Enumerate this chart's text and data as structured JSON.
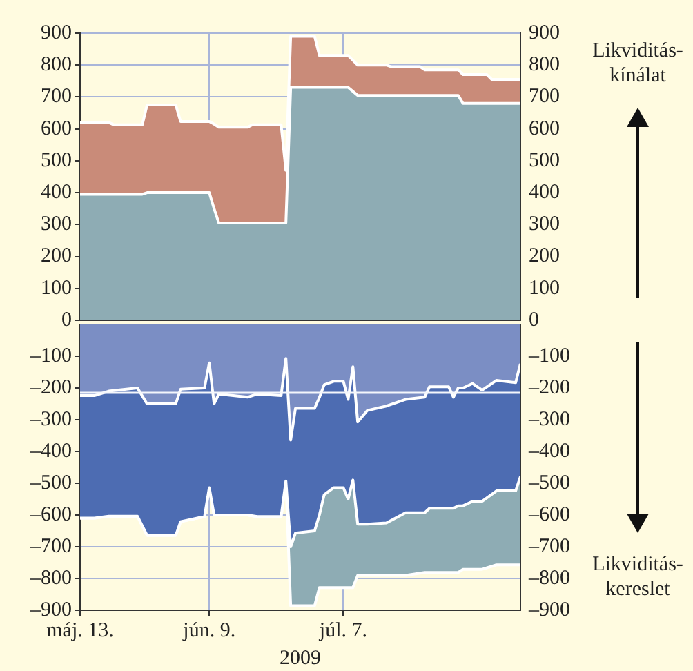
{
  "chart_data": [
    {
      "type": "area",
      "stacked": true,
      "tick_labels": "y",
      "annotations": [
        "Likviditás-kínálat"
      ],
      "xlim": [
        "2009-05-13",
        "2009-08-13"
      ],
      "xticks": [
        {
          "value": "2009-05-13",
          "label": null
        },
        {
          "value": "2009-06-09",
          "label": null
        },
        {
          "value": "2009-07-07",
          "label": null
        }
      ],
      "ylim": [
        0,
        900
      ],
      "yticks": [
        0,
        100,
        200,
        300,
        400,
        500,
        600,
        700,
        800,
        900
      ],
      "y2lim": [
        0,
        900
      ],
      "y2ticks": [
        0,
        100,
        200,
        300,
        400,
        500,
        600,
        700,
        800,
        900
      ],
      "grid": true,
      "series": [
        {
          "color": "#8eacb4",
          "x": [
            "2009-05-13",
            "2009-05-19",
            "2009-05-20",
            "2009-05-26",
            "2009-05-27",
            "2009-06-02",
            "2009-06-03",
            "2009-06-09",
            "2009-06-10",
            "2009-06-11",
            "2009-06-17",
            "2009-06-18",
            "2009-06-24",
            "2009-06-25",
            "2009-06-26",
            "2009-07-01",
            "2009-07-02",
            "2009-07-08",
            "2009-07-10",
            "2009-07-16",
            "2009-07-17",
            "2009-07-23",
            "2009-07-24",
            "2009-07-31",
            "2009-08-01",
            "2009-08-06",
            "2009-08-07",
            "2009-08-13"
          ],
          "values": [
            395,
            395,
            395,
            395,
            400,
            400,
            400,
            400,
            350,
            305,
            305,
            305,
            305,
            305,
            730,
            730,
            730,
            730,
            705,
            705,
            705,
            705,
            705,
            705,
            680,
            680,
            680,
            680
          ]
        },
        {
          "color": "#c98b79",
          "x": [
            "2009-05-13",
            "2009-05-19",
            "2009-05-20",
            "2009-05-26",
            "2009-05-27",
            "2009-06-02",
            "2009-06-03",
            "2009-06-09",
            "2009-06-10",
            "2009-06-11",
            "2009-06-17",
            "2009-06-18",
            "2009-06-24",
            "2009-06-25",
            "2009-06-26",
            "2009-07-01",
            "2009-07-02",
            "2009-07-08",
            "2009-07-10",
            "2009-07-16",
            "2009-07-17",
            "2009-07-23",
            "2009-07-24",
            "2009-07-31",
            "2009-08-01",
            "2009-08-06",
            "2009-08-07",
            "2009-08-13"
          ],
          "values": [
            225,
            225,
            218,
            218,
            275,
            275,
            223,
            223,
            265,
            300,
            300,
            308,
            308,
            165,
            160,
            160,
            100,
            100,
            95,
            95,
            90,
            90,
            80,
            80,
            90,
            90,
            75,
            75
          ]
        }
      ]
    },
    {
      "type": "area",
      "stacked": true,
      "xlabel": "2009",
      "annotations": [
        "Likviditás-kereslet"
      ],
      "xlim": [
        "2009-05-13",
        "2009-08-13"
      ],
      "xticks": [
        {
          "value": "2009-05-13",
          "label": "máj. 13."
        },
        {
          "value": "2009-06-09",
          "label": "jún. 9."
        },
        {
          "value": "2009-07-07",
          "label": "júl. 7."
        }
      ],
      "ylim": [
        -900,
        0
      ],
      "yticks": [
        {
          "value": -900,
          "label": "–900"
        },
        {
          "value": -800,
          "label": "–800"
        },
        {
          "value": -700,
          "label": "–700"
        },
        {
          "value": -600,
          "label": "–600"
        },
        {
          "value": -500,
          "label": "–500"
        },
        {
          "value": -400,
          "label": "–400"
        },
        {
          "value": -300,
          "label": "–300"
        },
        {
          "value": -200,
          "label": "–200"
        },
        {
          "value": -100,
          "label": "–100"
        }
      ],
      "y2lim": [
        -900,
        0
      ],
      "y2ticks": [
        {
          "value": -900,
          "label": "–900"
        },
        {
          "value": -800,
          "label": "–800"
        },
        {
          "value": -700,
          "label": "–700"
        },
        {
          "value": -600,
          "label": "–600"
        },
        {
          "value": -500,
          "label": "–500"
        },
        {
          "value": -400,
          "label": "–400"
        },
        {
          "value": -300,
          "label": "–300"
        },
        {
          "value": -200,
          "label": "–200"
        },
        {
          "value": -100,
          "label": "–100"
        }
      ],
      "grid": true,
      "ref_lines": [
        {
          "axis": "y",
          "value": -215,
          "color": "#f4f6fb"
        }
      ],
      "series": [
        {
          "color": "#7b8ec4",
          "x": [
            "2009-05-13",
            "2009-05-16",
            "2009-05-19",
            "2009-05-25",
            "2009-05-27",
            "2009-06-02",
            "2009-06-03",
            "2009-06-08",
            "2009-06-09",
            "2009-06-10",
            "2009-06-11",
            "2009-06-17",
            "2009-06-19",
            "2009-06-24",
            "2009-06-25",
            "2009-06-26",
            "2009-06-27",
            "2009-07-01",
            "2009-07-02",
            "2009-07-03",
            "2009-07-05",
            "2009-07-07",
            "2009-07-08",
            "2009-07-09",
            "2009-07-10",
            "2009-07-12",
            "2009-07-16",
            "2009-07-20",
            "2009-07-24",
            "2009-07-25",
            "2009-07-29",
            "2009-07-30",
            "2009-07-31",
            "2009-08-01",
            "2009-08-03",
            "2009-08-05",
            "2009-08-08",
            "2009-08-12",
            "2009-08-13"
          ],
          "values": [
            -224,
            -224,
            -210,
            -200,
            -250,
            -250,
            -204,
            -200,
            -121,
            -250,
            -219,
            -229,
            -219,
            -224,
            -107,
            -364,
            -264,
            -264,
            -230,
            -190,
            -179,
            -179,
            -236,
            -133,
            -307,
            -271,
            -257,
            -236,
            -229,
            -196,
            -196,
            -229,
            -200,
            -200,
            -186,
            -207,
            -176,
            -183,
            -124
          ]
        },
        {
          "color": "#4d6cb2",
          "x": [
            "2009-05-13",
            "2009-05-16",
            "2009-05-19",
            "2009-05-25",
            "2009-05-27",
            "2009-06-02",
            "2009-06-03",
            "2009-06-08",
            "2009-06-09",
            "2009-06-10",
            "2009-06-11",
            "2009-06-17",
            "2009-06-19",
            "2009-06-24",
            "2009-06-25",
            "2009-06-26",
            "2009-06-27",
            "2009-07-01",
            "2009-07-02",
            "2009-07-03",
            "2009-07-05",
            "2009-07-07",
            "2009-07-08",
            "2009-07-09",
            "2009-07-10",
            "2009-07-12",
            "2009-07-16",
            "2009-07-20",
            "2009-07-24",
            "2009-07-25",
            "2009-07-29",
            "2009-07-30",
            "2009-07-31",
            "2009-08-01",
            "2009-08-03",
            "2009-08-05",
            "2009-08-08",
            "2009-08-12",
            "2009-08-13"
          ],
          "values": [
            -386,
            -386,
            -394,
            -404,
            -414,
            -414,
            -417,
            -405,
            -393,
            -350,
            -381,
            -371,
            -386,
            -381,
            -386,
            -336,
            -393,
            -386,
            -370,
            -346,
            -335,
            -335,
            -314,
            -357,
            -322,
            -358,
            -368,
            -357,
            -364,
            -383,
            -383,
            -350,
            -371,
            -371,
            -371,
            -350,
            -348,
            -341,
            -355
          ]
        },
        {
          "color": "#8eacb4",
          "x": [
            "2009-05-13",
            "2009-05-16",
            "2009-05-19",
            "2009-05-25",
            "2009-05-27",
            "2009-06-02",
            "2009-06-03",
            "2009-06-08",
            "2009-06-09",
            "2009-06-10",
            "2009-06-11",
            "2009-06-17",
            "2009-06-19",
            "2009-06-24",
            "2009-06-25",
            "2009-06-26",
            "2009-06-27",
            "2009-07-01",
            "2009-07-02",
            "2009-07-03",
            "2009-07-05",
            "2009-07-07",
            "2009-07-08",
            "2009-07-09",
            "2009-07-10",
            "2009-07-12",
            "2009-07-16",
            "2009-07-20",
            "2009-07-24",
            "2009-07-25",
            "2009-07-29",
            "2009-07-30",
            "2009-07-31",
            "2009-08-01",
            "2009-08-03",
            "2009-08-05",
            "2009-08-08",
            "2009-08-12",
            "2009-08-13"
          ],
          "values": [
            0,
            0,
            0,
            0,
            0,
            0,
            0,
            0,
            0,
            0,
            0,
            0,
            0,
            0,
            0,
            -186,
            -229,
            -236,
            -229,
            -293,
            -315,
            -315,
            -279,
            -339,
            -161,
            -161,
            -165,
            -197,
            -188,
            -202,
            -202,
            -202,
            -210,
            -200,
            -214,
            -214,
            -233,
            -233,
            -278
          ]
        }
      ]
    }
  ]
}
